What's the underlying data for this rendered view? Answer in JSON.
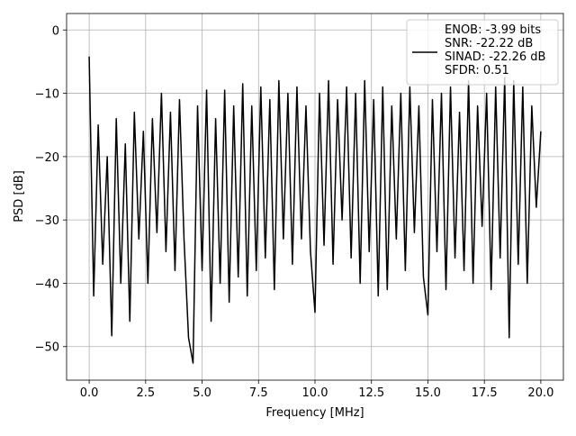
{
  "chart_data": {
    "type": "line",
    "xlabel": "Frequency [MHz]",
    "ylabel": "PSD [dB]",
    "xlim": [
      -1.0,
      21.0
    ],
    "ylim": [
      -55.3,
      2.6
    ],
    "xticks": [
      {
        "value": 0,
        "label": "0.0"
      },
      2.5,
      {
        "value": 5,
        "label": "5.0"
      },
      7.5,
      {
        "value": 10,
        "label": "10.0"
      },
      12.5,
      {
        "value": 15,
        "label": "15.0"
      },
      17.5,
      {
        "value": 20,
        "label": "20.0"
      }
    ],
    "yticks": [
      0,
      {
        "value": -10,
        "label": "−10"
      },
      {
        "value": -20,
        "label": "−20"
      },
      {
        "value": -30,
        "label": "−30"
      },
      {
        "value": -40,
        "label": "−40"
      },
      {
        "value": -50,
        "label": "−50"
      }
    ],
    "grid": true,
    "legend": "upper right",
    "x": [
      0,
      0.2,
      0.4,
      0.6,
      0.8,
      1,
      1.2,
      1.4,
      1.6,
      1.8,
      2,
      2.2,
      2.4,
      2.6,
      2.8,
      3,
      3.2,
      3.4,
      3.6,
      3.8,
      4,
      4.2,
      4.4,
      4.6,
      4.8,
      5,
      5.2,
      5.4,
      5.6,
      5.8,
      6,
      6.2,
      6.4,
      6.6,
      6.8,
      7,
      7.2,
      7.4,
      7.6,
      7.8,
      8,
      8.2,
      8.4,
      8.6,
      8.8,
      9,
      9.2,
      9.4,
      9.6,
      9.8,
      10,
      10.2,
      10.4,
      10.6,
      10.8,
      11,
      11.2,
      11.4,
      11.6,
      11.8,
      12,
      12.2,
      12.4,
      12.6,
      12.8,
      13,
      13.2,
      13.4,
      13.6,
      13.8,
      14,
      14.2,
      14.4,
      14.6,
      14.8,
      15,
      15.2,
      15.4,
      15.6,
      15.8,
      16,
      16.2,
      16.4,
      16.6,
      16.8,
      17,
      17.2,
      17.4,
      17.6,
      17.8,
      18,
      18.2,
      18.4,
      18.6,
      18.8,
      19,
      19.2,
      19.4,
      19.6,
      19.8,
      20
    ],
    "series": [
      {
        "name": "ENOB: -3.99 bits\nSNR: -22.22 dB\nSINAD: -22.26 dB\nSFDR: 0.51",
        "color": "#000000",
        "values": [
          -4.2,
          -42,
          -15,
          -37,
          -20,
          -48.3,
          -14,
          -40,
          -18,
          -46,
          -13,
          -33,
          -16,
          -40,
          -14,
          -32,
          -10,
          -35,
          -13,
          -38,
          -11,
          -33,
          -48.6,
          -52.6,
          -12,
          -38,
          -9.5,
          -46,
          -14,
          -40,
          -9.5,
          -43,
          -12,
          -39,
          -8.5,
          -42,
          -12,
          -38,
          -9,
          -36,
          -11,
          -41,
          -8,
          -33,
          -10,
          -37,
          -9,
          -33,
          -12,
          -35,
          -44.6,
          -10,
          -34,
          -8,
          -37,
          -11,
          -30,
          -9,
          -36,
          -10,
          -40,
          -8,
          -35,
          -11,
          -42,
          -9,
          -41,
          -12,
          -33,
          -10,
          -38,
          -9,
          -32,
          -12,
          -39,
          -45,
          -11,
          -35,
          -10,
          -41,
          -9,
          -36,
          -13,
          -38,
          -8,
          -40,
          -12,
          -31,
          -10,
          -41,
          -9,
          -36,
          -7.5,
          -48.6,
          -8,
          -37,
          -9,
          -40,
          -12,
          -28,
          -16
        ]
      }
    ]
  }
}
